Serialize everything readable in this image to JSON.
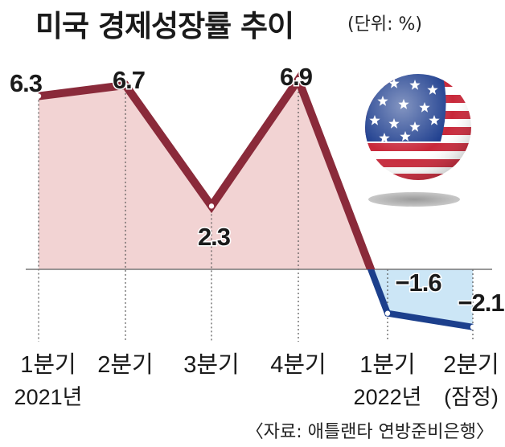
{
  "chart_data": {
    "type": "line",
    "title": "미국 경제성장률 추이",
    "unit_label": "(단위: %)",
    "categories": [
      {
        "quarter": "1분기",
        "period": "2021년"
      },
      {
        "quarter": "2분기",
        "period": ""
      },
      {
        "quarter": "3분기",
        "period": ""
      },
      {
        "quarter": "4분기",
        "period": ""
      },
      {
        "quarter": "1분기",
        "period": "2022년"
      },
      {
        "quarter": "2분기",
        "period": "(잠정)"
      }
    ],
    "values": [
      6.3,
      6.7,
      2.3,
      6.9,
      -1.6,
      -2.1
    ],
    "value_labels": [
      "6.3",
      "6.7",
      "2.3",
      "6.9",
      "−1.6",
      "−2.1"
    ],
    "ylim": [
      -2.5,
      7.2
    ],
    "colors": {
      "positive_line": "#8a2a3a",
      "positive_fill": "#f2d3d3",
      "negative_line": "#1c3f8c",
      "negative_fill": "#cce6f6"
    },
    "source": "〈자료: 애틀랜타 연방준비은행〉",
    "decoration": "us-flag-ball"
  }
}
